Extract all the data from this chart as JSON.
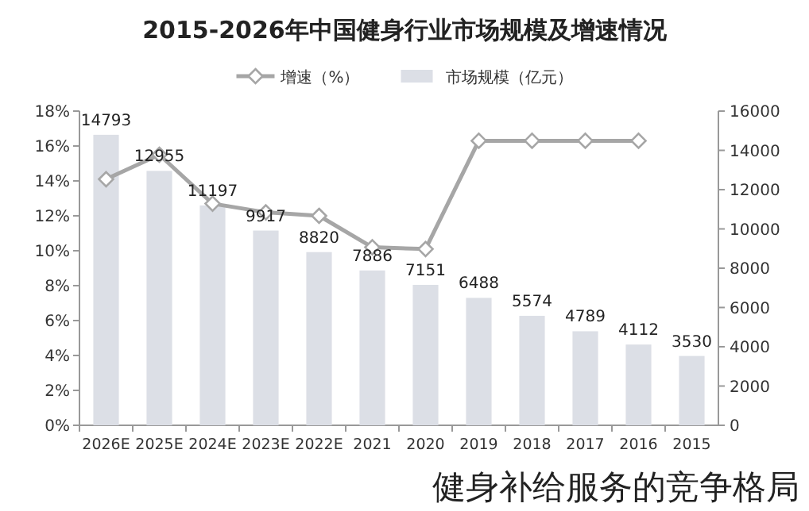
{
  "chart_data": {
    "type": "bar",
    "title": "2015-2026年中国健身行业市场规模及增速情况",
    "categories": [
      "2026E",
      "2025E",
      "2024E",
      "2023E",
      "2022E",
      "2021",
      "2020",
      "2019",
      "2018",
      "2017",
      "2016",
      "2015"
    ],
    "series": [
      {
        "name": "市场规模（亿元）",
        "axis": "y2",
        "color": "#dcdfe6",
        "values": [
          14793,
          12955,
          11197,
          9917,
          8820,
          7886,
          7151,
          6488,
          5574,
          4789,
          4112,
          3530
        ],
        "value_labels": [
          "14793",
          "12955",
          "11197",
          "9917",
          "8820",
          "7886",
          "7151",
          "6488",
          "5574",
          "4789",
          "4112",
          "3530"
        ]
      },
      {
        "name": "增速（%）",
        "type": "line",
        "color": "#a6a6a6",
        "values": [
          14.1,
          15.5,
          12.7,
          12.2,
          12.0,
          10.2,
          10.1,
          16.3,
          16.3,
          16.3,
          16.3,
          null
        ]
      }
    ],
    "ylim": [
      0,
      18
    ],
    "yticks": [
      {
        "value": 0,
        "label": "0%"
      },
      {
        "value": 2,
        "label": "2%"
      },
      {
        "value": 4,
        "label": "4%"
      },
      {
        "value": 6,
        "label": "6%"
      },
      {
        "value": 8,
        "label": "8%"
      },
      {
        "value": 10,
        "label": "10%"
      },
      {
        "value": 12,
        "label": "12%"
      },
      {
        "value": 14,
        "label": "14%"
      },
      {
        "value": 16,
        "label": "16%"
      },
      {
        "value": 18,
        "label": "18%"
      }
    ],
    "y2lim": [
      0,
      16000
    ],
    "y2ticks": [
      0,
      2000,
      4000,
      6000,
      8000,
      10000,
      12000,
      14000,
      16000
    ],
    "legend": "top",
    "marker": "diamond",
    "line_style": "solid",
    "grid": false,
    "annotations": [
      "健身补给服务的竞争格局"
    ]
  }
}
